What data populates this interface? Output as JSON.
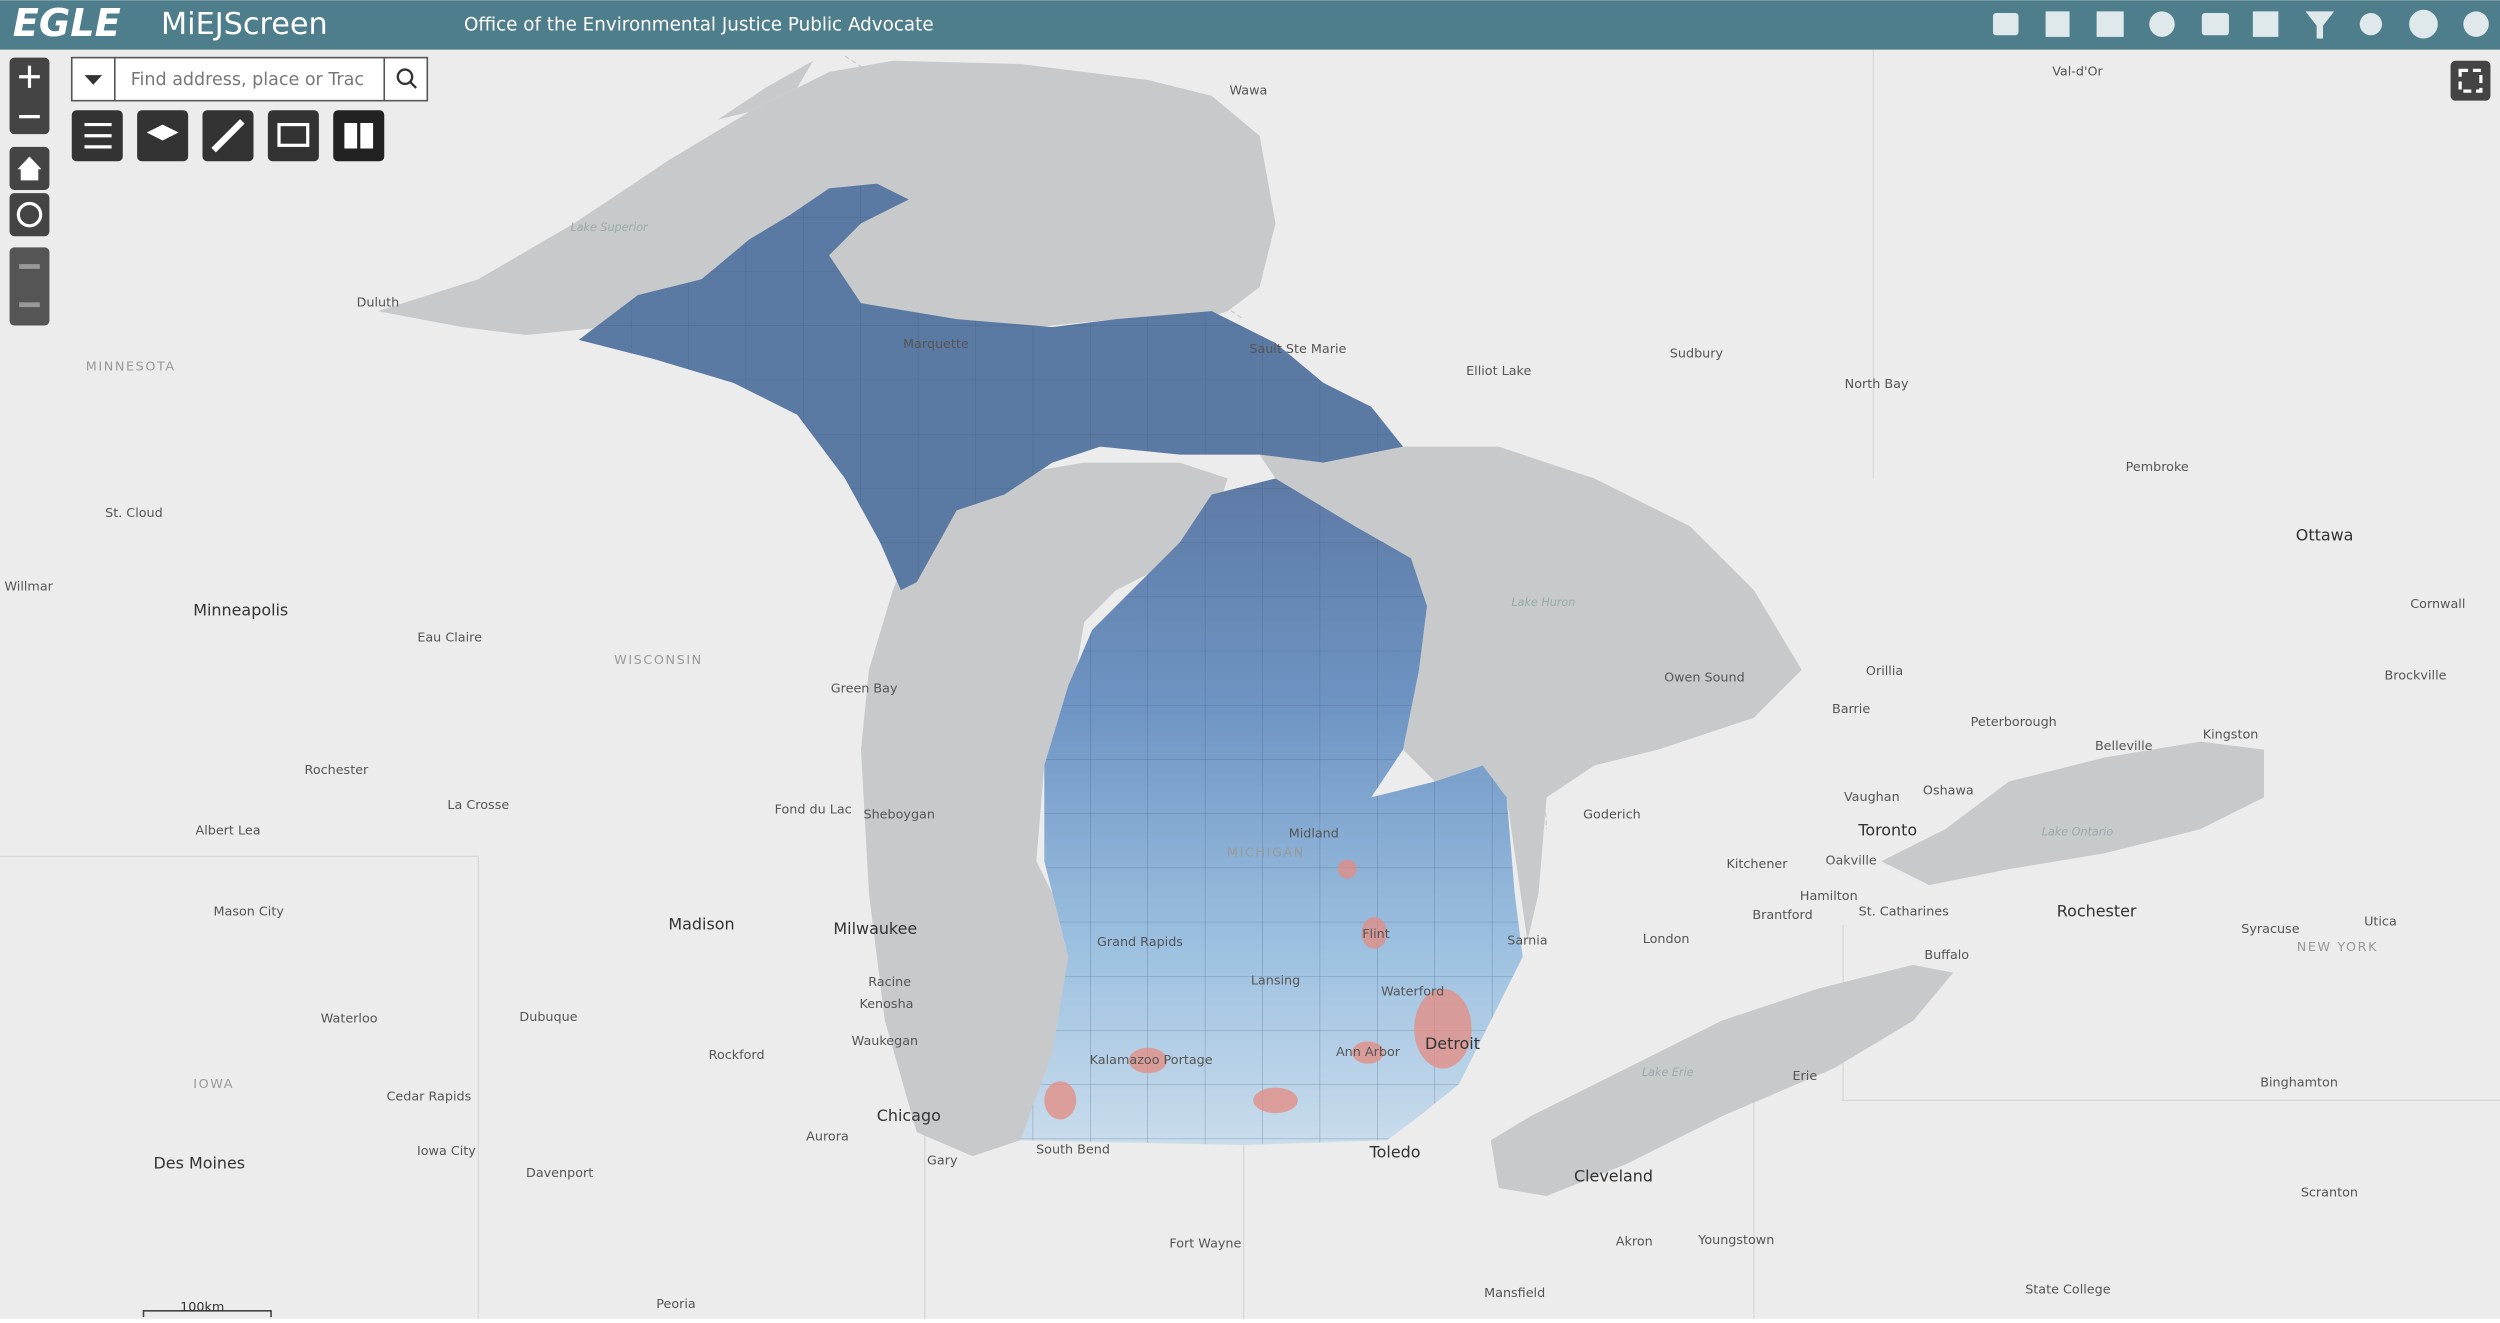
{
  "header": {
    "logo": "EGLE",
    "app_name": "MiEJScreen",
    "subtitle": "Office of the Environmental Justice Public Advocate"
  },
  "search": {
    "placeholder": "Find address, place or Trac"
  },
  "map": {
    "scale_label": "100km",
    "labels": [
      "Wawa",
      "Val-d'Or",
      "Lake Superior",
      "Duluth",
      "Marquette",
      "Sault Ste Marie",
      "Elliot Lake",
      "Sudbury",
      "North Bay",
      "Pembroke",
      "MINNESOTA",
      "St. Cloud",
      "Ottawa",
      "Willmar",
      "Minneapolis",
      "Eau Claire",
      "WISCONSIN",
      "Lake Huron",
      "Cornwall",
      "Green Bay",
      "Owen Sound",
      "Orillia",
      "Brockville",
      "Barrie",
      "Peterborough",
      "Belleville",
      "Kingston",
      "Rochester",
      "La Crosse",
      "Fond du Lac",
      "Sheboygan",
      "Midland",
      "Goderich",
      "Vaughan",
      "Oshawa",
      "Toronto",
      "Lake Ontario",
      "Albert Lea",
      "MICHIGAN",
      "Kitchener",
      "Oakville",
      "Hamilton",
      "St. Catharines",
      "Brantford",
      "Mason City",
      "Madison",
      "Milwaukee",
      "Grand Rapids",
      "Flint",
      "Sarnia",
      "London",
      "Rochester",
      "Buffalo",
      "Syracuse",
      "Utica",
      "NEW YORK",
      "Racine",
      "Kenosha",
      "Lansing",
      "Waterloo",
      "Dubuque",
      "Waterford",
      "Waukegan",
      "Rockford",
      "Kalamazoo Portage",
      "Ann Arbor",
      "Detroit",
      "Lake Erie",
      "Erie",
      "Binghamton",
      "IOWA",
      "Cedar Rapids",
      "Chicago",
      "Aurora",
      "South Bend",
      "Toledo",
      "Iowa City",
      "Des Moines",
      "Gary",
      "Davenport",
      "Cleveland",
      "Scranton",
      "Akron",
      "Youngstown",
      "Fort Wayne",
      "State College",
      "Mansfield",
      "Peoria"
    ]
  }
}
